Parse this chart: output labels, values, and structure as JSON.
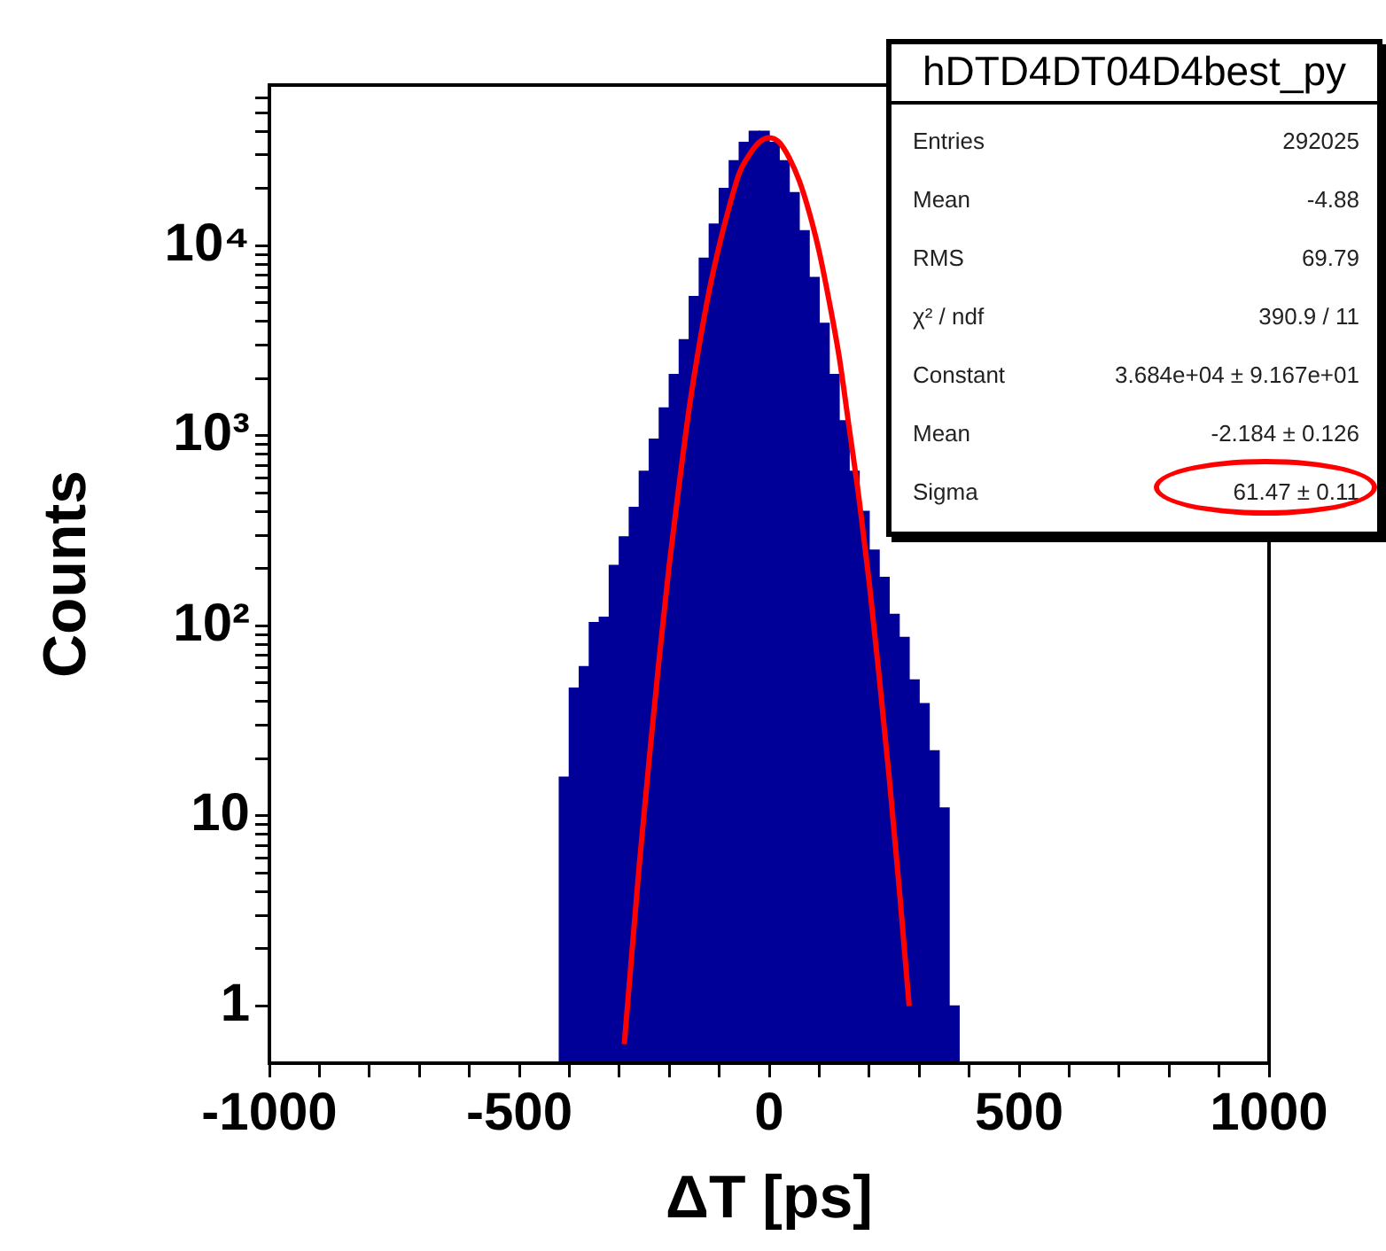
{
  "chart_data": {
    "type": "histogram",
    "title": "hDTD4DT04D4best_py",
    "xlabel": "ΔT [ps]",
    "ylabel": "Counts",
    "xlim": [
      -1000,
      1000
    ],
    "xticks": [
      -1000,
      {
        "value": -900,
        "label": null
      },
      {
        "value": -800,
        "label": null
      },
      {
        "value": -700,
        "label": null
      },
      {
        "value": -600,
        "label": null
      },
      -500,
      {
        "value": -400,
        "label": null
      },
      {
        "value": -300,
        "label": null
      },
      {
        "value": -200,
        "label": null
      },
      {
        "value": -100,
        "label": null
      },
      0,
      {
        "value": 100,
        "label": null
      },
      {
        "value": 200,
        "label": null
      },
      {
        "value": 300,
        "label": null
      },
      {
        "value": 400,
        "label": null
      },
      500,
      {
        "value": 600,
        "label": null
      },
      {
        "value": 700,
        "label": null
      },
      {
        "value": 800,
        "label": null
      },
      {
        "value": 900,
        "label": null
      },
      1000
    ],
    "ylim": [
      0.5,
      70000
    ],
    "yticks": [
      1,
      {
        "value": 2,
        "label": null
      },
      {
        "value": 3,
        "label": null
      },
      {
        "value": 4,
        "label": null
      },
      {
        "value": 5,
        "label": null
      },
      {
        "value": 6,
        "label": null
      },
      {
        "value": 7,
        "label": null
      },
      {
        "value": 8,
        "label": null
      },
      {
        "value": 9,
        "label": null
      },
      10,
      {
        "value": 20,
        "label": null
      },
      {
        "value": 30,
        "label": null
      },
      {
        "value": 40,
        "label": null
      },
      {
        "value": 50,
        "label": null
      },
      {
        "value": 60,
        "label": null
      },
      {
        "value": 70,
        "label": null
      },
      {
        "value": 80,
        "label": null
      },
      {
        "value": 90,
        "label": null
      },
      {
        "value": 100,
        "label": "10²"
      },
      {
        "value": 200,
        "label": null
      },
      {
        "value": 300,
        "label": null
      },
      {
        "value": 400,
        "label": null
      },
      {
        "value": 500,
        "label": null
      },
      {
        "value": 600,
        "label": null
      },
      {
        "value": 700,
        "label": null
      },
      {
        "value": 800,
        "label": null
      },
      {
        "value": 900,
        "label": null
      },
      {
        "value": 1000,
        "label": "10³"
      },
      {
        "value": 2000,
        "label": null
      },
      {
        "value": 3000,
        "label": null
      },
      {
        "value": 4000,
        "label": null
      },
      {
        "value": 5000,
        "label": null
      },
      {
        "value": 6000,
        "label": null
      },
      {
        "value": 7000,
        "label": null
      },
      {
        "value": 8000,
        "label": null
      },
      {
        "value": 9000,
        "label": null
      },
      {
        "value": 10000,
        "label": "10⁴"
      },
      {
        "value": 20000,
        "label": null
      },
      {
        "value": 30000,
        "label": null
      },
      {
        "value": 40000,
        "label": null
      },
      {
        "value": 50000,
        "label": null
      },
      {
        "value": 60000,
        "label": null
      }
    ],
    "log": "y",
    "grid": false,
    "legend": false,
    "marker": "none",
    "series": [
      {
        "color": "#000099",
        "bins": [
          -420,
          -400,
          -380,
          -360,
          -340,
          -320,
          -300,
          -280,
          -260,
          -240,
          -220,
          -200,
          -180,
          -160,
          -140,
          -120,
          -100,
          -80,
          -60,
          -40,
          -20,
          0,
          20,
          40,
          60,
          80,
          100,
          120,
          140,
          160,
          180,
          200,
          220,
          240,
          260,
          280,
          300,
          320,
          340,
          360,
          380
        ],
        "values": [
          16,
          47,
          61,
          104,
          111,
          208,
          294,
          420,
          650,
          960,
          1400,
          2100,
          3200,
          5400,
          8600,
          13000,
          20000,
          28000,
          35000,
          40000,
          40000,
          35000,
          28000,
          19000,
          12000,
          6800,
          3900,
          2100,
          1200,
          650,
          400,
          250,
          180,
          115,
          87,
          52,
          39,
          22,
          11,
          1
        ]
      },
      {
        "type": "line",
        "color": "#ff0000",
        "x": [
          -290,
          -280,
          -260,
          -240,
          -220,
          -200,
          -180,
          -160,
          -140,
          -120,
          -100,
          -80,
          -60,
          -40,
          -20,
          0,
          20,
          40,
          60,
          80,
          100,
          120,
          140,
          160,
          180,
          200,
          220,
          240,
          260,
          280
        ],
        "values": [
          0.63,
          1.3,
          5.5,
          20,
          68,
          210,
          560,
          1400,
          3000,
          5800,
          10000,
          16000,
          24000,
          30000,
          35000,
          37000,
          35000,
          29000,
          22000,
          15000,
          9300,
          5100,
          2600,
          1100,
          460,
          170,
          54,
          16,
          4.2,
          1
        ]
      }
    ],
    "annotations": [
      "Entries",
      "292025",
      "Mean",
      "-4.88",
      "RMS",
      "69.79",
      "χ² / ndf",
      "390.9 / 11",
      "Constant",
      "3.684e+04 ± 9.167e+01",
      "Mean",
      "-2.184 ± 0.126",
      "Sigma",
      "61.47 ± 0.11"
    ]
  }
}
